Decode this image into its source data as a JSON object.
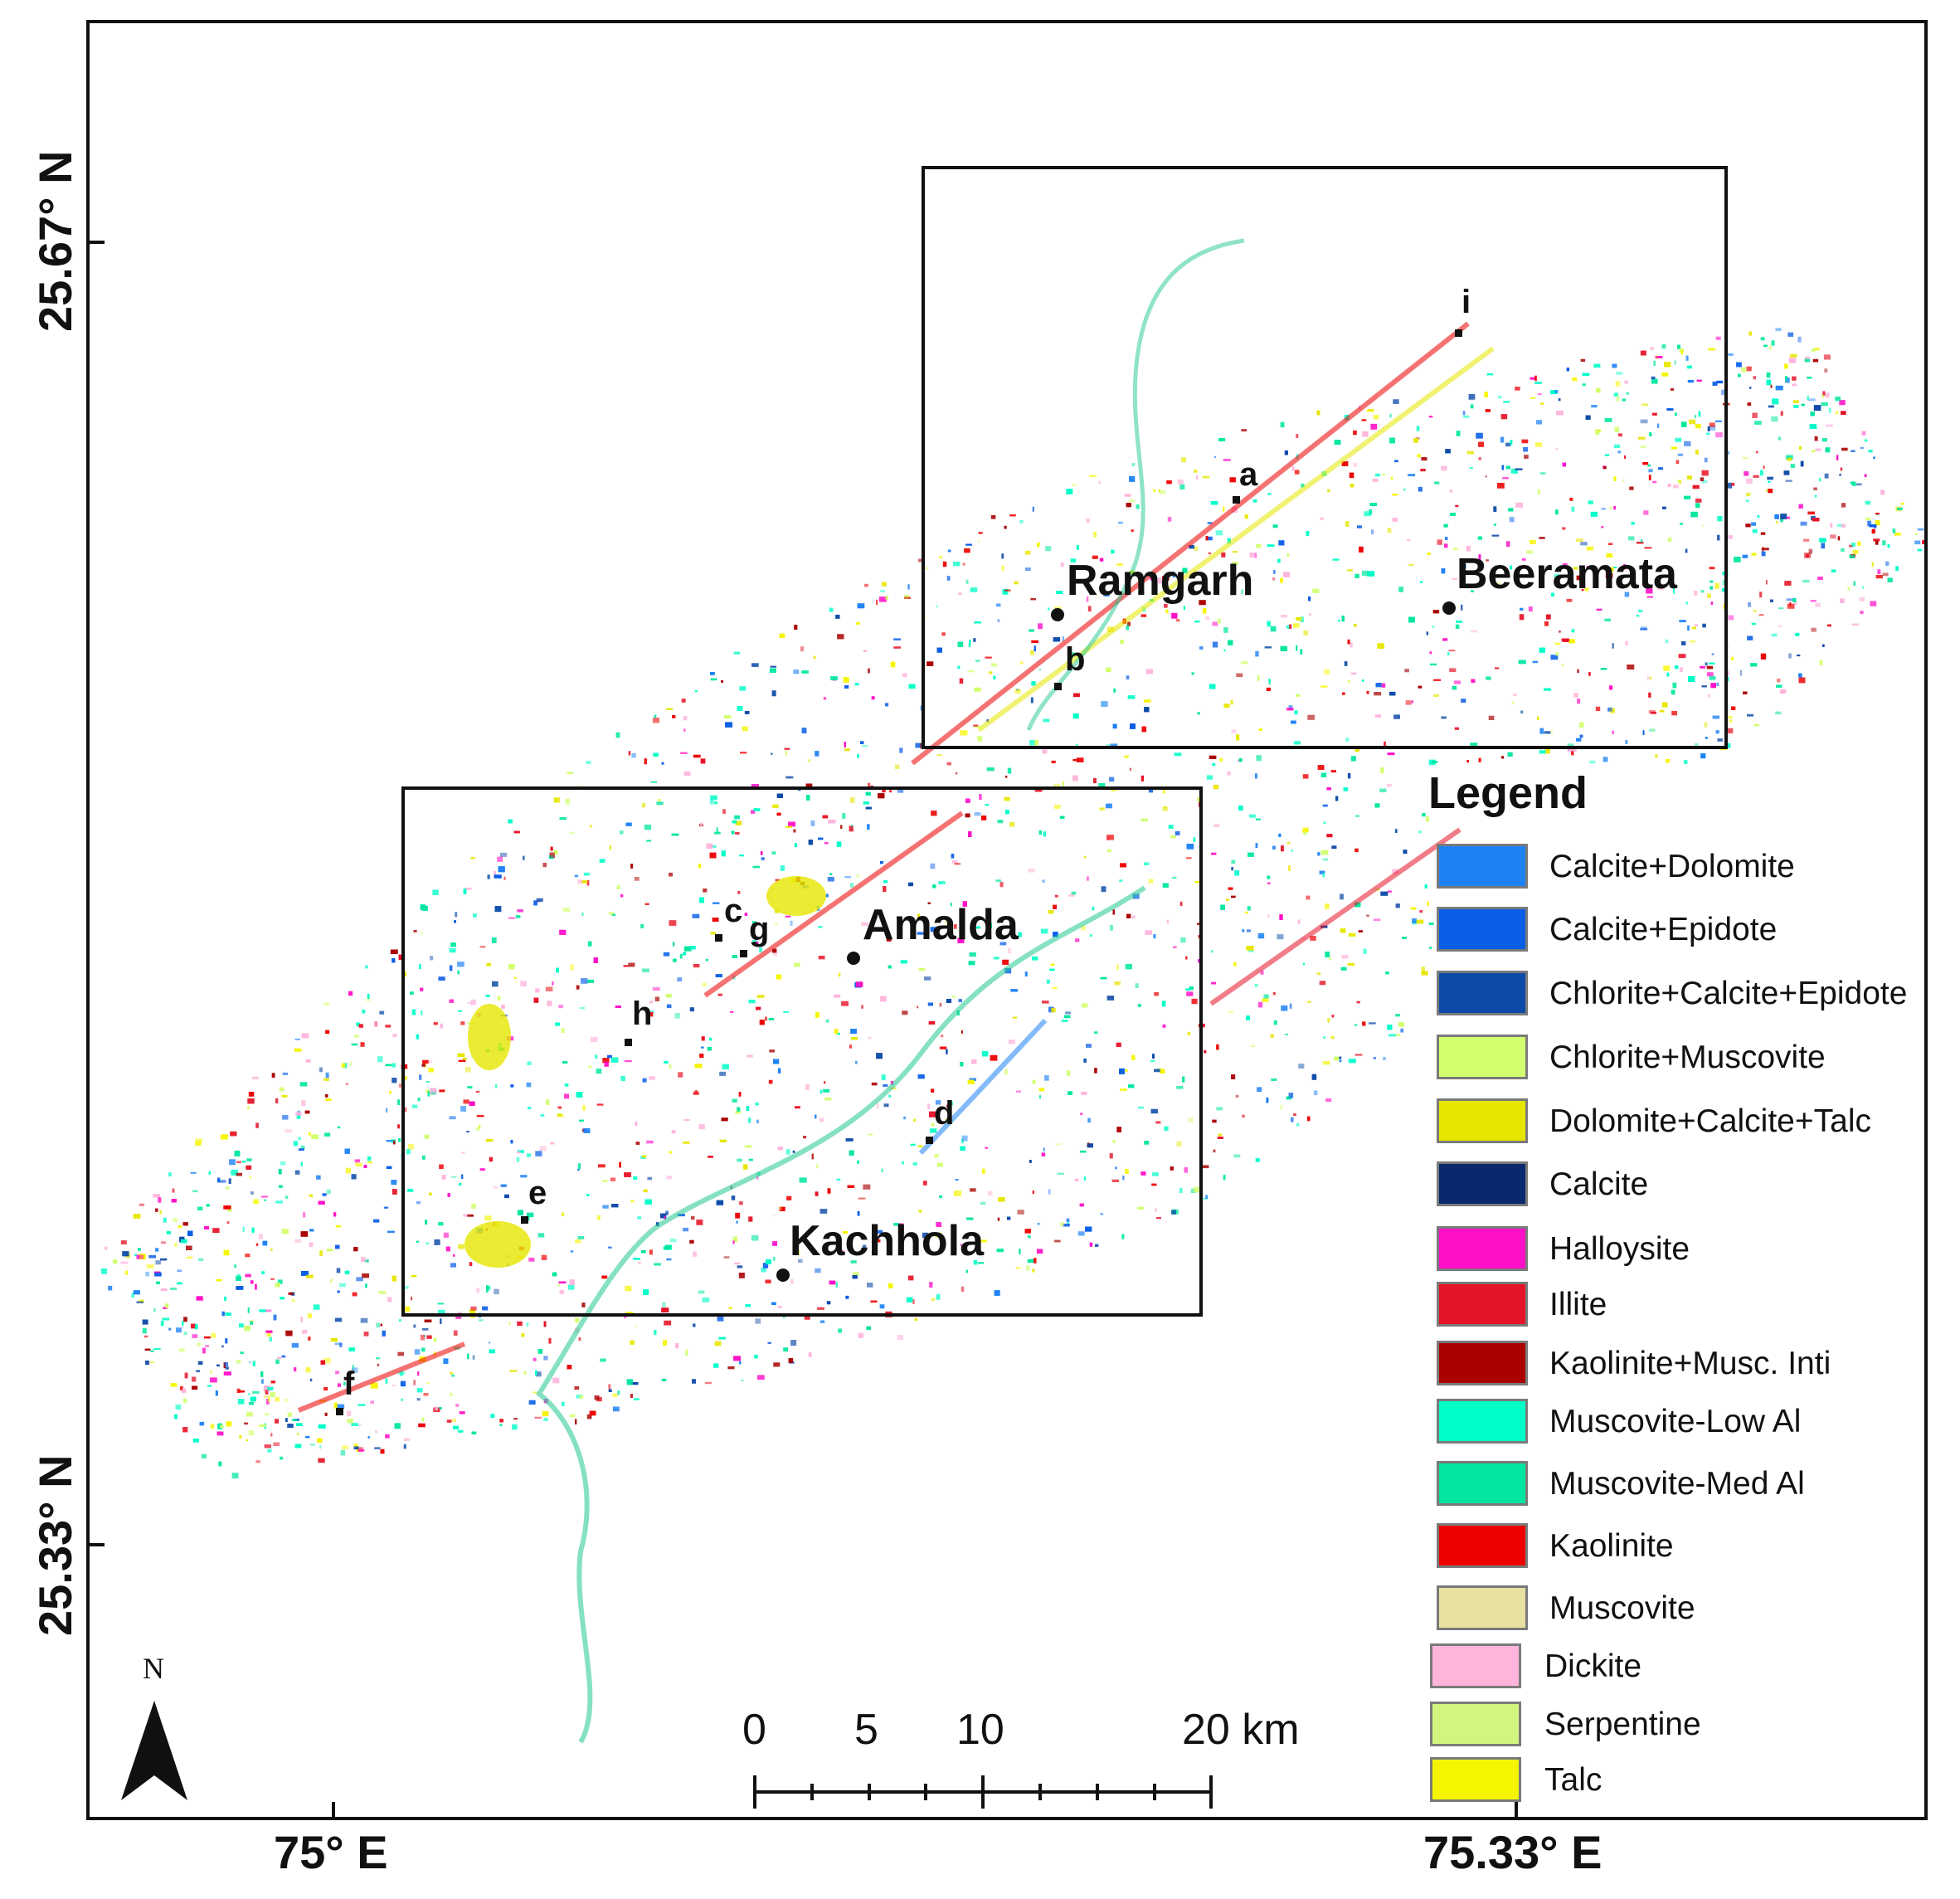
{
  "coordinates": {
    "lat_top": "25.67° N",
    "lat_bottom": "25.33° N",
    "lon_left": "75° E",
    "lon_right": "75.33° E"
  },
  "places": {
    "ramgarh": "Ramgarh",
    "beeramata": "Beeramata",
    "amalda": "Amalda",
    "kachhola": "Kachhola"
  },
  "sites": {
    "a": "a",
    "b": "b",
    "c": "c",
    "d": "d",
    "e": "e",
    "f": "f",
    "g": "g",
    "h": "h",
    "i": "i"
  },
  "legend": {
    "title": "Legend",
    "items": [
      {
        "label": "Calcite+Dolomite",
        "color": "#1e82f5"
      },
      {
        "label": "Calcite+Epidote",
        "color": "#0a5ee6"
      },
      {
        "label": "Chlorite+Calcite+Epidote",
        "color": "#0c4aa8"
      },
      {
        "label": "Chlorite+Muscovite",
        "color": "#d2ff6e"
      },
      {
        "label": "Dolomite+Calcite+Talc",
        "color": "#e6e600"
      },
      {
        "label": "Calcite",
        "color": "#0a286e"
      },
      {
        "label": "Halloysite",
        "color": "#ff10c8"
      },
      {
        "label": "Illite",
        "color": "#e61428"
      },
      {
        "label": "Kaolinite+Musc. Inti",
        "color": "#aa0000"
      },
      {
        "label": "Muscovite-Low Al",
        "color": "#00ffc8"
      },
      {
        "label": "Muscovite-Med Al",
        "color": "#00e6a0"
      },
      {
        "label": "Kaolinite",
        "color": "#ee0000"
      },
      {
        "label": "Muscovite",
        "color": "#e6e1a0"
      },
      {
        "label": "Dickite",
        "color": "#ffb4dc"
      },
      {
        "label": "Serpentine",
        "color": "#d2f57d"
      },
      {
        "label": "Talc",
        "color": "#f5f500"
      }
    ]
  },
  "scale_bar": {
    "labels": [
      "0",
      "5",
      "10",
      "20 km"
    ]
  },
  "north_arrow": {
    "letter": "N"
  }
}
